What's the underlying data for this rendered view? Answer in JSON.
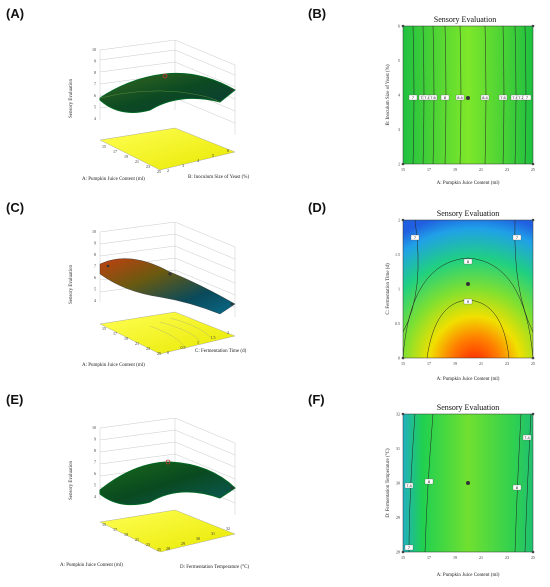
{
  "panels": [
    {
      "id": "A",
      "label": "(A)"
    },
    {
      "id": "B",
      "label": "(B)"
    },
    {
      "id": "C",
      "label": "(C)"
    },
    {
      "id": "D",
      "label": "(D)"
    },
    {
      "id": "E",
      "label": "(E)"
    },
    {
      "id": "F",
      "label": "(F)"
    }
  ],
  "chart_data": [
    {
      "id": "A",
      "type": "surface",
      "zlabel": "Sensory Evaluation",
      "xlabel": "A: Pumpkin Juice Content (ml)",
      "ylabel": "B: Inoculum Size of Yeast (%)",
      "zticks": [
        "4",
        "5",
        "6",
        "7",
        "8",
        "9",
        "10"
      ],
      "xticks": [
        "15",
        "17",
        "19",
        "21",
        "23",
        "25"
      ],
      "yticks": [
        "2",
        "3",
        "4",
        "5",
        "6"
      ]
    },
    {
      "id": "B",
      "type": "contour",
      "title": "Sensory Evaluation",
      "xlabel": "A: Pumpkin Juice Content (ml)",
      "ylabel": "B: Inoculum Size of Yeast (%)",
      "xticks": [
        "15",
        "17",
        "19",
        "21",
        "23",
        "25"
      ],
      "yticks": [
        "2",
        "3",
        "4",
        "5",
        "6"
      ],
      "contour_labels": [
        "7",
        "7.2",
        "7.4",
        "7.6",
        "8",
        "8.4",
        "8.4",
        "7.6",
        "7.4",
        "7.2",
        "7"
      ]
    },
    {
      "id": "C",
      "type": "surface",
      "zlabel": "Sensory Evaluation",
      "xlabel": "A: Pumpkin Juice Content (ml)",
      "ylabel": "C: Fermentation Time (d)",
      "zticks": [
        "4",
        "5",
        "6",
        "7",
        "8",
        "9",
        "10"
      ],
      "xticks": [
        "15",
        "17",
        "19",
        "21",
        "23",
        "25"
      ],
      "yticks": [
        "0",
        "0.5",
        "1",
        "1.5",
        "2"
      ]
    },
    {
      "id": "D",
      "type": "contour",
      "title": "Sensory Evaluation",
      "xlabel": "A: Pumpkin Juice Content (ml)",
      "ylabel": "C: Fermentation Time (d)",
      "xticks": [
        "15",
        "17",
        "19",
        "21",
        "23",
        "25"
      ],
      "yticks": [
        "0",
        "0.5",
        "1",
        "1.5",
        "2"
      ],
      "contour_labels": [
        "7",
        "7",
        "8",
        "9"
      ]
    },
    {
      "id": "E",
      "type": "surface",
      "zlabel": "Sensory Evaluation",
      "xlabel": "A: Pumpkin Juice Content (ml)",
      "ylabel": "D: Fermentation Temperature (°C)",
      "zticks": [
        "4",
        "5",
        "6",
        "7",
        "8",
        "9",
        "10"
      ],
      "xticks": [
        "15",
        "17",
        "19",
        "21",
        "23",
        "25"
      ],
      "yticks": [
        "28",
        "29",
        "30",
        "31",
        "32"
      ]
    },
    {
      "id": "F",
      "type": "contour",
      "title": "Sensory Evaluation",
      "xlabel": "A: Pumpkin Juice Content (ml)",
      "ylabel": "D: Fermentation Temperature (°C)",
      "xticks": [
        "15",
        "17",
        "19",
        "21",
        "23",
        "25"
      ],
      "yticks": [
        "28",
        "29",
        "30",
        "31",
        "32"
      ],
      "contour_labels": [
        "7",
        "7.4",
        "8",
        "8",
        "7.4"
      ]
    }
  ]
}
